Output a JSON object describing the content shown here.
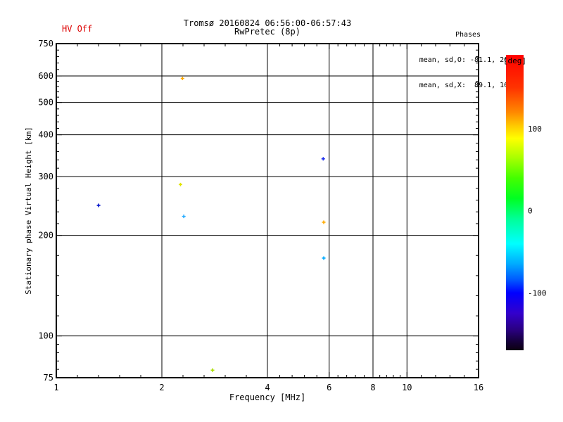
{
  "header": {
    "hv_status": "HV Off",
    "hv_color": "#dd0000",
    "title_line1": "Tromsø 20160824 06:56:00-06:57:43",
    "title_line2": "RwPretec (8p)",
    "stats_title": "Phases",
    "stats_o": "mean, sd,O: -81.1, 26.5",
    "stats_x": "mean, sd,X:  89.1, 16.9"
  },
  "chart_data": {
    "type": "scatter",
    "title": "Tromsø 20160824 06:56:00-06:57:43",
    "subtitle": "RwPretec (8p)",
    "xlabel": "Frequency [MHz]",
    "ylabel": "Stationary phase Virtual Height [km]",
    "x_scale": "log",
    "y_scale": "log",
    "xlim": [
      1,
      16
    ],
    "ylim": [
      75,
      750
    ],
    "x_ticks": [
      1,
      2,
      4,
      6,
      8,
      10,
      16
    ],
    "y_ticks": [
      75,
      100,
      200,
      300,
      400,
      500,
      600,
      750
    ],
    "x_gridlines": [
      2,
      4,
      6,
      8,
      10
    ],
    "y_gridlines": [
      100,
      200,
      300,
      400,
      500,
      600
    ],
    "minor_subdivisions": 5,
    "grid_on": true,
    "axis_color": "#000000",
    "points": [
      {
        "freq_mhz": 2.29,
        "height_km": 590,
        "phase_deg": 105,
        "color": "#ffaa00"
      },
      {
        "freq_mhz": 2.26,
        "height_km": 284,
        "phase_deg": 80,
        "color": "#e2e400"
      },
      {
        "freq_mhz": 1.32,
        "height_km": 246,
        "phase_deg": -115,
        "color": "#0011cc"
      },
      {
        "freq_mhz": 2.31,
        "height_km": 228,
        "phase_deg": -65,
        "color": "#22aaff"
      },
      {
        "freq_mhz": 5.77,
        "height_km": 339,
        "phase_deg": -95,
        "color": "#2233ee"
      },
      {
        "freq_mhz": 5.79,
        "height_km": 219,
        "phase_deg": 105,
        "color": "#ffaa00"
      },
      {
        "freq_mhz": 5.79,
        "height_km": 171,
        "phase_deg": -60,
        "color": "#00aaff"
      },
      {
        "freq_mhz": 2.79,
        "height_km": 79,
        "phase_deg": 60,
        "color": "#aadd00"
      }
    ],
    "colorbar": {
      "label": "[deg]",
      "ticks": [
        100,
        0,
        -100
      ],
      "range": [
        -170,
        190
      ],
      "stops": [
        {
          "phase": 190,
          "color": "#ff0000"
        },
        {
          "phase": 150,
          "color": "#ff3300"
        },
        {
          "phase": 120,
          "color": "#ff8800"
        },
        {
          "phase": 103,
          "color": "#ffcc00"
        },
        {
          "phase": 88,
          "color": "#ffff00"
        },
        {
          "phase": 65,
          "color": "#aaff00"
        },
        {
          "phase": 40,
          "color": "#44ff00"
        },
        {
          "phase": 15,
          "color": "#00ff22"
        },
        {
          "phase": -10,
          "color": "#00ff99"
        },
        {
          "phase": -40,
          "color": "#00ffff"
        },
        {
          "phase": -65,
          "color": "#00aaff"
        },
        {
          "phase": -85,
          "color": "#0055ff"
        },
        {
          "phase": -100,
          "color": "#0000ff"
        },
        {
          "phase": -125,
          "color": "#3300cc"
        },
        {
          "phase": -145,
          "color": "#2a0080"
        },
        {
          "phase": -160,
          "color": "#150038"
        },
        {
          "phase": -170,
          "color": "#0d0010"
        }
      ]
    }
  }
}
